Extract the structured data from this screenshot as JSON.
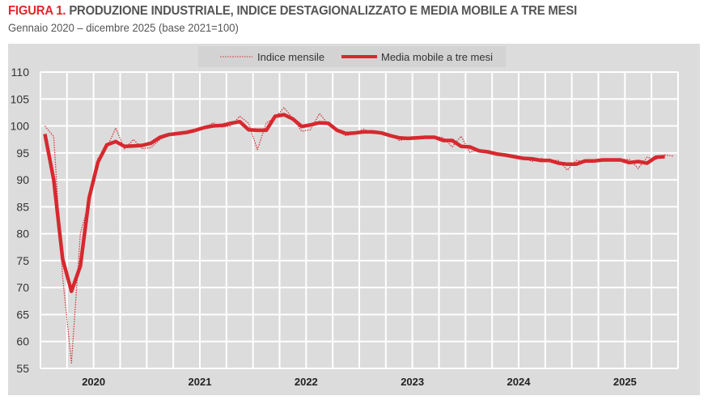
{
  "title_prefix": "FIGURA 1.",
  "title": "PRODUZIONE INDUSTRIALE, INDICE DESTAGIONALIZZATO E MEDIA MOBILE A TRE MESI",
  "subtitle": "Gennaio 2020 – dicembre 2025 (base 2021=100)",
  "chart_data": {
    "type": "line",
    "title": "PRODUZIONE INDUSTRIALE, INDICE DESTAGIONALIZZATO E MEDIA MOBILE A TRE MESI",
    "subtitle": "Gennaio 2020 – dicembre 2025 (base 2021=100)",
    "x_start": "2020-01",
    "x_frequency": "monthly",
    "x_tick_labels": [
      "2020",
      "2021",
      "2022",
      "2023",
      "2024",
      "2025"
    ],
    "ylim": [
      55,
      110
    ],
    "y_ticks": [
      55,
      60,
      65,
      70,
      75,
      80,
      85,
      90,
      95,
      100,
      105,
      110
    ],
    "grid": "on (quarterly vertical, every 5 horizontal)",
    "legend_position": "top-center",
    "colors": {
      "series": "#d7282f",
      "panel": "#dcdcdc",
      "grid": "#ffffff",
      "legend_bg": "#d4d4d4"
    },
    "series": [
      {
        "name": "Indice mensile",
        "style": "dotted",
        "values": [
          100,
          98,
          72,
          56,
          80,
          86,
          94,
          96,
          99.6,
          95.7,
          97.5,
          95.8,
          96,
          97.5,
          98.2,
          98.4,
          98.8,
          99,
          99.6,
          100.6,
          99.8,
          100,
          101.8,
          100.5,
          95.6,
          100.6,
          101.5,
          103.4,
          101.4,
          99,
          99.3,
          102.3,
          100.3,
          99,
          98.2,
          98.6,
          99.4,
          98.6,
          98.9,
          98.5,
          97.3,
          97.6,
          98,
          97.9,
          98.1,
          97.8,
          96.1,
          98.1,
          95.1,
          95.7,
          95.2,
          94.9,
          94.4,
          94.4,
          94.2,
          93.4,
          94,
          93.6,
          93.6,
          91.8,
          93.6,
          93.3,
          93.6,
          93.7,
          93.6,
          93.8,
          93.8,
          92.1,
          94.2,
          93.8,
          94.6,
          94.4
        ]
      },
      {
        "name": "Media mobile a tre mesi",
        "style": "solid",
        "values": [
          98.5,
          90,
          75.3,
          69.3,
          74,
          86.7,
          93.3,
          96.5,
          97.1,
          96.2,
          96.3,
          96.4,
          96.8,
          97.9,
          98.4,
          98.6,
          98.8,
          99.2,
          99.7,
          100,
          100.1,
          100.5,
          100.8,
          99.3,
          99.2,
          99.2,
          101.8,
          102.1,
          101.3,
          99.9,
          100.2,
          100.6,
          100.5,
          99.2,
          98.6,
          98.7,
          98.9,
          98.9,
          98.7,
          98.2,
          97.8,
          97.7,
          97.8,
          97.9,
          97.9,
          97.3,
          97.3,
          96.2,
          96.1,
          95.4,
          95.2,
          94.8,
          94.6,
          94.3,
          94,
          93.9,
          93.6,
          93.6,
          93.1,
          92.9,
          92.9,
          93.5,
          93.5,
          93.7,
          93.7,
          93.7,
          93.2,
          93.4,
          93.1,
          94.2,
          94.3
        ]
      }
    ]
  }
}
